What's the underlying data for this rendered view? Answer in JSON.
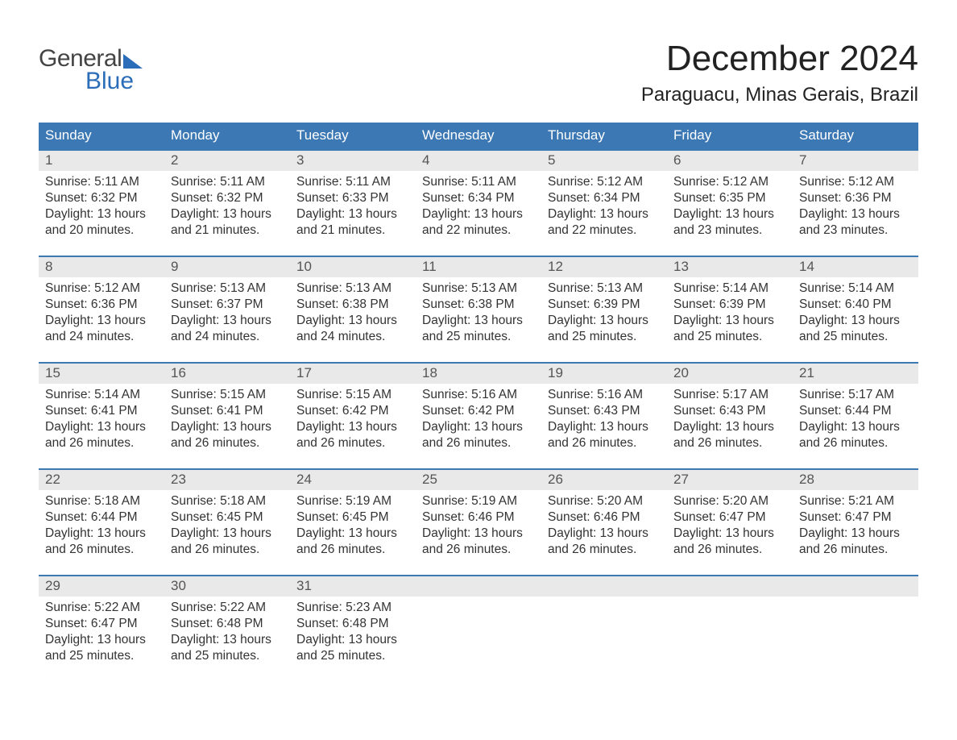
{
  "brand": {
    "line1a": "General",
    "line2": "Blue"
  },
  "title": "December 2024",
  "location": "Paraguacu, Minas Gerais, Brazil",
  "colors": {
    "header_bg": "#3c78b4",
    "header_text": "#ffffff",
    "daynum_bg": "#e9e9e9",
    "daynum_text": "#555555",
    "body_text": "#333333",
    "week_border": "#3c78b4",
    "brand_blue": "#2b6db8",
    "page_bg": "#ffffff"
  },
  "fonts": {
    "title_pt": 44,
    "location_pt": 24,
    "header_pt": 17,
    "daynum_pt": 17,
    "body_pt": 15.5
  },
  "labels": {
    "sunrise": "Sunrise:",
    "sunset": "Sunset:",
    "daylight": "Daylight:"
  },
  "weekdays": [
    "Sunday",
    "Monday",
    "Tuesday",
    "Wednesday",
    "Thursday",
    "Friday",
    "Saturday"
  ],
  "weeks": [
    [
      {
        "n": "1",
        "sunrise": "5:11 AM",
        "sunset": "6:32 PM",
        "daylight": "13 hours and 20 minutes."
      },
      {
        "n": "2",
        "sunrise": "5:11 AM",
        "sunset": "6:32 PM",
        "daylight": "13 hours and 21 minutes."
      },
      {
        "n": "3",
        "sunrise": "5:11 AM",
        "sunset": "6:33 PM",
        "daylight": "13 hours and 21 minutes."
      },
      {
        "n": "4",
        "sunrise": "5:11 AM",
        "sunset": "6:34 PM",
        "daylight": "13 hours and 22 minutes."
      },
      {
        "n": "5",
        "sunrise": "5:12 AM",
        "sunset": "6:34 PM",
        "daylight": "13 hours and 22 minutes."
      },
      {
        "n": "6",
        "sunrise": "5:12 AM",
        "sunset": "6:35 PM",
        "daylight": "13 hours and 23 minutes."
      },
      {
        "n": "7",
        "sunrise": "5:12 AM",
        "sunset": "6:36 PM",
        "daylight": "13 hours and 23 minutes."
      }
    ],
    [
      {
        "n": "8",
        "sunrise": "5:12 AM",
        "sunset": "6:36 PM",
        "daylight": "13 hours and 24 minutes."
      },
      {
        "n": "9",
        "sunrise": "5:13 AM",
        "sunset": "6:37 PM",
        "daylight": "13 hours and 24 minutes."
      },
      {
        "n": "10",
        "sunrise": "5:13 AM",
        "sunset": "6:38 PM",
        "daylight": "13 hours and 24 minutes."
      },
      {
        "n": "11",
        "sunrise": "5:13 AM",
        "sunset": "6:38 PM",
        "daylight": "13 hours and 25 minutes."
      },
      {
        "n": "12",
        "sunrise": "5:13 AM",
        "sunset": "6:39 PM",
        "daylight": "13 hours and 25 minutes."
      },
      {
        "n": "13",
        "sunrise": "5:14 AM",
        "sunset": "6:39 PM",
        "daylight": "13 hours and 25 minutes."
      },
      {
        "n": "14",
        "sunrise": "5:14 AM",
        "sunset": "6:40 PM",
        "daylight": "13 hours and 25 minutes."
      }
    ],
    [
      {
        "n": "15",
        "sunrise": "5:14 AM",
        "sunset": "6:41 PM",
        "daylight": "13 hours and 26 minutes."
      },
      {
        "n": "16",
        "sunrise": "5:15 AM",
        "sunset": "6:41 PM",
        "daylight": "13 hours and 26 minutes."
      },
      {
        "n": "17",
        "sunrise": "5:15 AM",
        "sunset": "6:42 PM",
        "daylight": "13 hours and 26 minutes."
      },
      {
        "n": "18",
        "sunrise": "5:16 AM",
        "sunset": "6:42 PM",
        "daylight": "13 hours and 26 minutes."
      },
      {
        "n": "19",
        "sunrise": "5:16 AM",
        "sunset": "6:43 PM",
        "daylight": "13 hours and 26 minutes."
      },
      {
        "n": "20",
        "sunrise": "5:17 AM",
        "sunset": "6:43 PM",
        "daylight": "13 hours and 26 minutes."
      },
      {
        "n": "21",
        "sunrise": "5:17 AM",
        "sunset": "6:44 PM",
        "daylight": "13 hours and 26 minutes."
      }
    ],
    [
      {
        "n": "22",
        "sunrise": "5:18 AM",
        "sunset": "6:44 PM",
        "daylight": "13 hours and 26 minutes."
      },
      {
        "n": "23",
        "sunrise": "5:18 AM",
        "sunset": "6:45 PM",
        "daylight": "13 hours and 26 minutes."
      },
      {
        "n": "24",
        "sunrise": "5:19 AM",
        "sunset": "6:45 PM",
        "daylight": "13 hours and 26 minutes."
      },
      {
        "n": "25",
        "sunrise": "5:19 AM",
        "sunset": "6:46 PM",
        "daylight": "13 hours and 26 minutes."
      },
      {
        "n": "26",
        "sunrise": "5:20 AM",
        "sunset": "6:46 PM",
        "daylight": "13 hours and 26 minutes."
      },
      {
        "n": "27",
        "sunrise": "5:20 AM",
        "sunset": "6:47 PM",
        "daylight": "13 hours and 26 minutes."
      },
      {
        "n": "28",
        "sunrise": "5:21 AM",
        "sunset": "6:47 PM",
        "daylight": "13 hours and 26 minutes."
      }
    ],
    [
      {
        "n": "29",
        "sunrise": "5:22 AM",
        "sunset": "6:47 PM",
        "daylight": "13 hours and 25 minutes."
      },
      {
        "n": "30",
        "sunrise": "5:22 AM",
        "sunset": "6:48 PM",
        "daylight": "13 hours and 25 minutes."
      },
      {
        "n": "31",
        "sunrise": "5:23 AM",
        "sunset": "6:48 PM",
        "daylight": "13 hours and 25 minutes."
      },
      {
        "empty": true
      },
      {
        "empty": true
      },
      {
        "empty": true
      },
      {
        "empty": true
      }
    ]
  ]
}
